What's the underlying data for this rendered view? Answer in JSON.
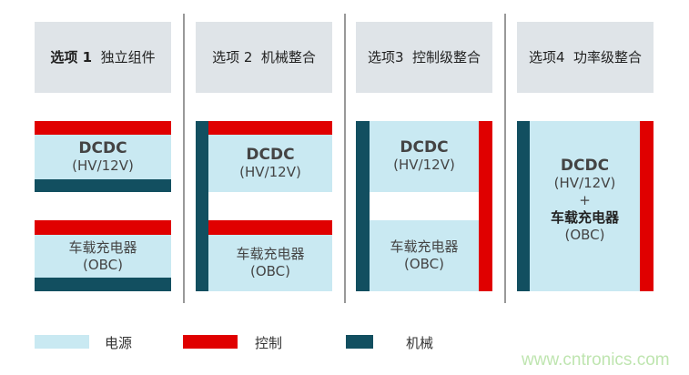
{
  "options": [
    {
      "num": "选项 1",
      "title": "独立组件"
    },
    {
      "num": "选项 2",
      "title": "机械整合"
    },
    {
      "num": "选项3",
      "title": "控制级整合"
    },
    {
      "num": "选项4",
      "title": "功率级整合"
    }
  ],
  "blocks": {
    "dcdc": "DCDC",
    "dcdc_sub": "(HV/12V)",
    "obc": "车载充电器",
    "obc_sub": "(OBC)",
    "plus": "+"
  },
  "legend": [
    {
      "label": "电源",
      "color": "#c9e9f2"
    },
    {
      "label": "控制",
      "color": "#e00000"
    },
    {
      "label": "机械",
      "color": "#124f60"
    }
  ],
  "watermark": "www.cntronics.com"
}
